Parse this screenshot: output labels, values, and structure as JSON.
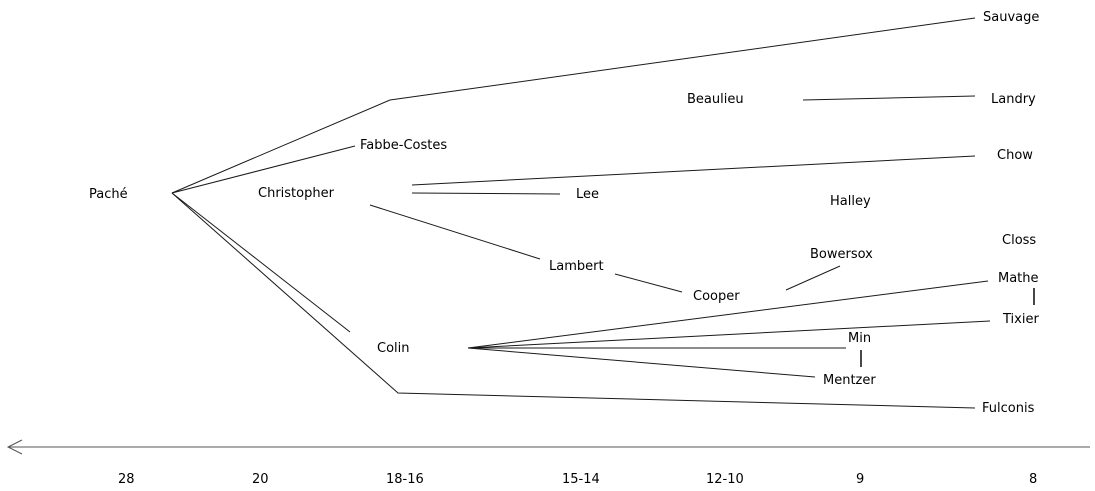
{
  "nodes": {
    "sauvage": "Sauvage",
    "beaulieu": "Beaulieu",
    "landry": "Landry",
    "fabbe_costes": "Fabbe-Costes",
    "chow": "Chow",
    "pache": "Paché",
    "christopher": "Christopher",
    "lee": "Lee",
    "halley": "Halley",
    "closs": "Closs",
    "bowersox": "Bowersox",
    "lambert": "Lambert",
    "mathe": "Mathe",
    "cooper": "Cooper",
    "tixier": "Tixier",
    "colin": "Colin",
    "min": "Min",
    "mentzer": "Mentzer",
    "fulconis": "Fulconis"
  },
  "axis": {
    "ticks": [
      "28",
      "20",
      "18-16",
      "15-14",
      "12-10",
      "9",
      "8"
    ]
  },
  "colors": {
    "line": "#1a1a1a",
    "text": "#000000",
    "axis": "#555555"
  }
}
